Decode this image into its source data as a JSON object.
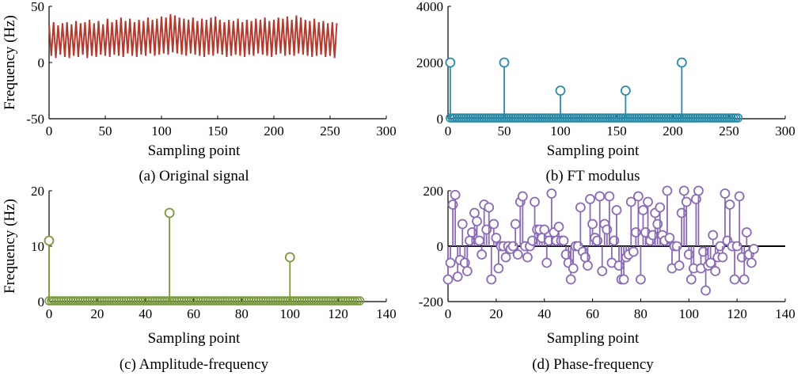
{
  "chart_data": [
    {
      "type": "line",
      "caption": "(a) Original signal",
      "xlabel": "Sampling point",
      "ylabel": "Frequency (Hz)",
      "xlim": [
        0,
        300
      ],
      "ylim": [
        -50,
        50
      ],
      "xticks": [
        "0",
        "50",
        "100",
        "150",
        "200",
        "250",
        "300"
      ],
      "yticks": [
        "-50",
        "0",
        "50"
      ],
      "color": "#b33a2e",
      "series": [
        {
          "x": [
            0,
            2,
            4,
            6,
            8,
            10,
            12,
            14,
            16,
            18,
            20,
            22,
            24,
            26,
            28,
            30,
            32,
            34,
            36,
            38,
            40,
            42,
            44,
            46,
            48,
            50,
            52,
            54,
            56,
            58,
            60,
            62,
            64,
            66,
            68,
            70,
            72,
            74,
            76,
            78,
            80,
            82,
            84,
            86,
            88,
            90,
            92,
            94,
            96,
            98,
            100,
            102,
            104,
            106,
            108,
            110,
            112,
            114,
            116,
            118,
            120,
            122,
            124,
            126,
            128,
            130,
            132,
            134,
            136,
            138,
            140,
            142,
            144,
            146,
            148,
            150,
            152,
            154,
            156,
            158,
            160,
            162,
            164,
            166,
            168,
            170,
            172,
            174,
            176,
            178,
            180,
            182,
            184,
            186,
            188,
            190,
            192,
            194,
            196,
            198,
            200,
            202,
            204,
            206,
            208,
            210,
            212,
            214,
            216,
            218,
            220,
            222,
            224,
            226,
            228,
            230,
            232,
            234,
            236,
            238,
            240,
            242,
            244,
            246,
            248,
            250,
            252,
            254,
            256
          ],
          "y": [
            34,
            6,
            36,
            4,
            33,
            7,
            35,
            5,
            36,
            4,
            34,
            6,
            37,
            5,
            35,
            7,
            36,
            4,
            38,
            6,
            35,
            5,
            37,
            7,
            34,
            6,
            39,
            5,
            36,
            7,
            38,
            6,
            40,
            5,
            37,
            8,
            39,
            6,
            36,
            5,
            38,
            7,
            37,
            6,
            40,
            8,
            38,
            6,
            39,
            7,
            41,
            8,
            40,
            7,
            43,
            9,
            42,
            8,
            40,
            7,
            39,
            6,
            38,
            8,
            40,
            7,
            37,
            6,
            39,
            5,
            38,
            7,
            40,
            6,
            41,
            8,
            38,
            7,
            36,
            5,
            38,
            6,
            37,
            7,
            39,
            6,
            36,
            5,
            38,
            7,
            37,
            6,
            39,
            8,
            38,
            7,
            40,
            6,
            37,
            5,
            38,
            7,
            40,
            8,
            39,
            6,
            41,
            7,
            38,
            6,
            42,
            8,
            40,
            7,
            38,
            6,
            37,
            5,
            39,
            6,
            36,
            7,
            37,
            5,
            35,
            6,
            36,
            4,
            35
          ]
        }
      ]
    },
    {
      "type": "stem",
      "caption": "(b) FT modulus",
      "xlabel": "Sampling point",
      "ylabel": "",
      "xlim": [
        0,
        300
      ],
      "ylim": [
        0,
        4000
      ],
      "xticks": [
        "0",
        "50",
        "100",
        "150",
        "200",
        "250",
        "300"
      ],
      "yticks": [
        "0",
        "2000",
        "4000"
      ],
      "color": "#2a8ba8",
      "series": [
        {
          "x": [
            2,
            50,
            100,
            158,
            208
          ],
          "y": [
            2000,
            2000,
            1000,
            1000,
            2000
          ]
        }
      ],
      "baseline_markers": {
        "from": 2,
        "to": 258,
        "value": 0
      }
    },
    {
      "type": "stem",
      "caption": "(c) Amplitude-frequency",
      "xlabel": "Sampling point",
      "ylabel": "Frequency (Hz)",
      "xlim": [
        0,
        140
      ],
      "ylim": [
        0,
        20
      ],
      "xticks": [
        "0",
        "20",
        "40",
        "60",
        "80",
        "100",
        "120",
        "140"
      ],
      "yticks": [
        "0",
        "10",
        "20"
      ],
      "color": "#7a9a3a",
      "series": [
        {
          "x": [
            0,
            50,
            100
          ],
          "y": [
            11,
            16,
            8
          ]
        }
      ],
      "baseline_markers": {
        "from": 0,
        "to": 129,
        "value": 0
      }
    },
    {
      "type": "stem",
      "caption": "(d) Phase-frequency",
      "xlabel": "Sampling point",
      "ylabel": "",
      "xlim": [
        0,
        140
      ],
      "ylim": [
        -200,
        200
      ],
      "xticks": [
        "0",
        "20",
        "40",
        "60",
        "80",
        "100",
        "120",
        "140"
      ],
      "yticks": [
        "-200",
        "0",
        "200"
      ],
      "color": "#8b6bb5",
      "series": [
        {
          "x": [
            0,
            1,
            2,
            3,
            4,
            5,
            6,
            7,
            8,
            9,
            10,
            11,
            12,
            13,
            14,
            15,
            16,
            17,
            18,
            19,
            20,
            21,
            22,
            23,
            24,
            25,
            26,
            27,
            28,
            29,
            30,
            31,
            32,
            33,
            34,
            35,
            36,
            37,
            38,
            39,
            40,
            41,
            42,
            43,
            44,
            45,
            46,
            47,
            48,
            49,
            50,
            51,
            52,
            53,
            54,
            55,
            56,
            57,
            58,
            59,
            60,
            61,
            62,
            63,
            64,
            65,
            66,
            67,
            68,
            69,
            70,
            71,
            72,
            73,
            74,
            75,
            76,
            77,
            78,
            79,
            80,
            81,
            82,
            83,
            84,
            85,
            86,
            87,
            88,
            89,
            90,
            91,
            92,
            93,
            94,
            95,
            96,
            97,
            98,
            99,
            100,
            101,
            102,
            103,
            104,
            105,
            106,
            107,
            108,
            109,
            110,
            111,
            112,
            113,
            114,
            115,
            116,
            117,
            118,
            119,
            120,
            121,
            122,
            123,
            124,
            125,
            126,
            127
          ],
          "y": [
            -120,
            -60,
            150,
            185,
            -110,
            -50,
            80,
            -60,
            -90,
            20,
            50,
            120,
            90,
            20,
            -30,
            150,
            60,
            140,
            -120,
            80,
            30,
            -80,
            0,
            0,
            -40,
            0,
            -10,
            0,
            80,
            -30,
            160,
            180,
            0,
            -40,
            0,
            20,
            160,
            60,
            60,
            30,
            60,
            -60,
            20,
            190,
            50,
            20,
            70,
            20,
            20,
            -30,
            -60,
            -120,
            -80,
            0,
            0,
            140,
            -20,
            -40,
            -70,
            170,
            80,
            30,
            20,
            180,
            -90,
            80,
            60,
            180,
            -60,
            20,
            130,
            -70,
            -120,
            -120,
            -40,
            -30,
            160,
            -20,
            50,
            180,
            -120,
            130,
            50,
            160,
            20,
            40,
            120,
            80,
            140,
            40,
            20,
            200,
            30,
            -80,
            0,
            0,
            -70,
            120,
            200,
            160,
            -30,
            -120,
            -80,
            170,
            200,
            -80,
            -20,
            -160,
            -70,
            -60,
            40,
            -90,
            -40,
            0,
            -40,
            190,
            20,
            150,
            0,
            -120,
            0,
            180,
            -40,
            -120,
            50,
            -30,
            -60,
            -10
          ]
        }
      ],
      "zero_line": true
    }
  ]
}
